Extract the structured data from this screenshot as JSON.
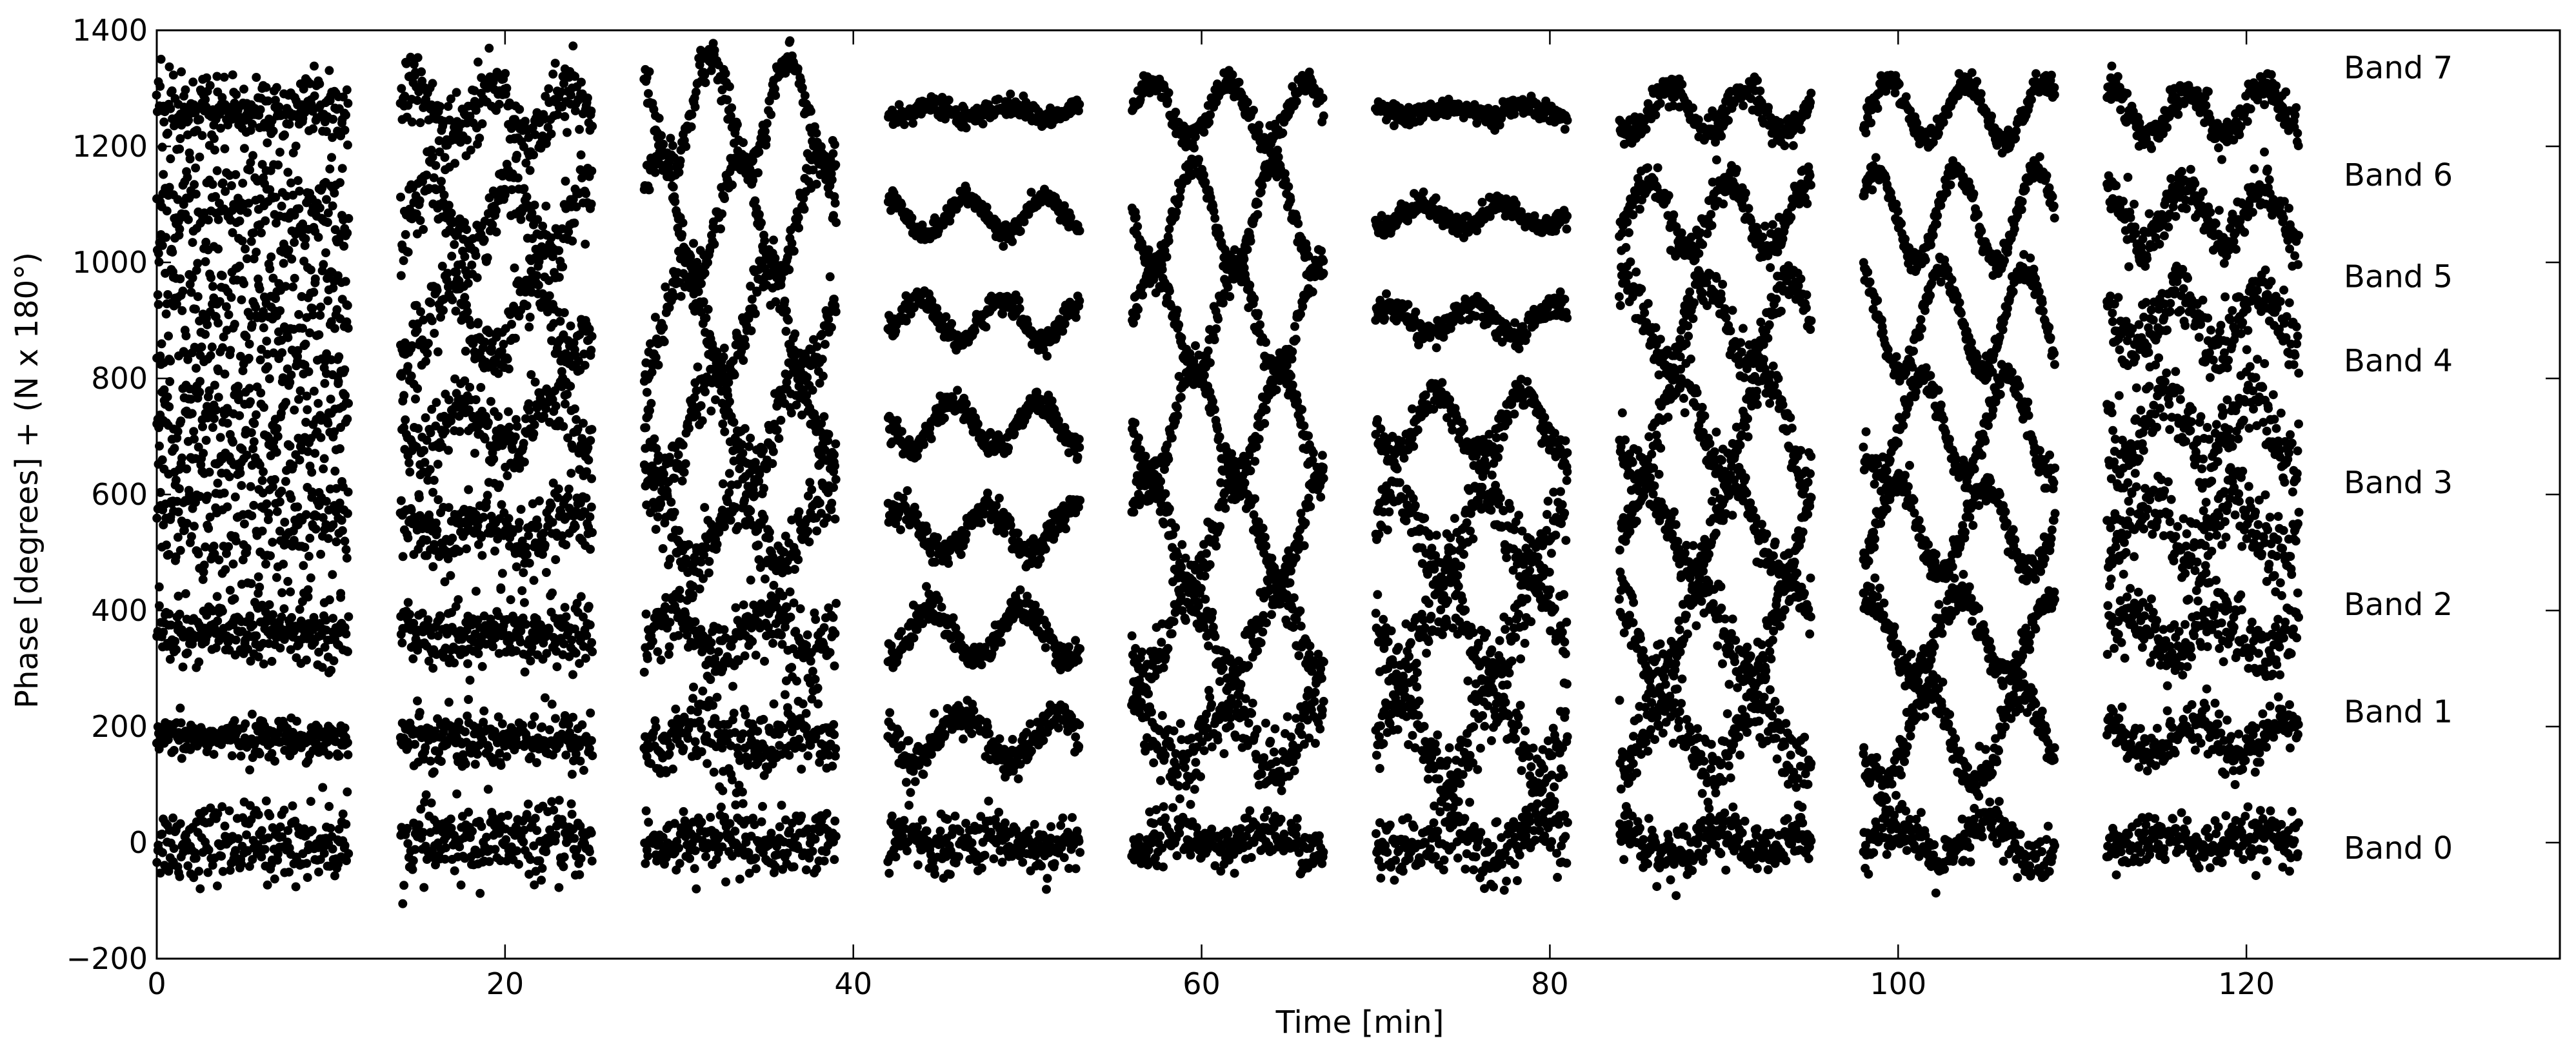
{
  "chart_data": {
    "type": "scatter",
    "xlabel": "Time [min]",
    "ylabel": "Phase [degrees] + (N x 180°)",
    "xlim": [
      0,
      138
    ],
    "ylim": [
      -200,
      1400
    ],
    "xticks": [
      0,
      20,
      40,
      60,
      80,
      100,
      120
    ],
    "yticks": [
      -200,
      0,
      200,
      400,
      600,
      800,
      1000,
      1200,
      1400
    ],
    "grid": false,
    "legend": "none",
    "marker_color": "#000000",
    "observation_segments": [
      [
        0,
        11
      ],
      [
        14,
        25
      ],
      [
        28,
        39
      ],
      [
        42,
        53
      ],
      [
        56,
        67
      ],
      [
        70,
        81
      ],
      [
        84,
        95
      ],
      [
        98,
        109
      ],
      [
        112,
        123
      ]
    ],
    "series": [
      {
        "name": "Band 0",
        "offset": 0,
        "label_y": -10,
        "scatter": [
          60,
          55,
          50,
          45,
          40,
          50,
          40,
          40,
          40
        ],
        "wave_amp": [
          0,
          0,
          5,
          10,
          20,
          25,
          20,
          35,
          10
        ]
      },
      {
        "name": "Band 1",
        "offset": 180,
        "label_y": 225,
        "scatter": [
          30,
          45,
          60,
          30,
          55,
          65,
          60,
          35,
          40
        ],
        "wave_amp": [
          0,
          5,
          20,
          40,
          50,
          70,
          60,
          80,
          30
        ]
      },
      {
        "name": "Band 2",
        "offset": 360,
        "label_y": 410,
        "scatter": [
          45,
          50,
          55,
          25,
          45,
          60,
          50,
          30,
          55
        ],
        "wave_amp": [
          0,
          5,
          30,
          45,
          70,
          70,
          75,
          65,
          40
        ]
      },
      {
        "name": "Band 3",
        "offset": 540,
        "label_y": 620,
        "scatter": [
          110,
          60,
          60,
          25,
          35,
          50,
          40,
          25,
          60
        ],
        "wave_amp": [
          0,
          20,
          60,
          40,
          85,
          70,
          80,
          75,
          50
        ]
      },
      {
        "name": "Band 4",
        "offset": 720,
        "label_y": 830,
        "scatter": [
          110,
          60,
          50,
          20,
          30,
          30,
          40,
          25,
          60
        ],
        "wave_amp": [
          0,
          40,
          80,
          40,
          95,
          50,
          85,
          85,
          60
        ]
      },
      {
        "name": "Band 5",
        "offset": 900,
        "label_y": 975,
        "scatter": [
          110,
          60,
          40,
          18,
          25,
          20,
          35,
          20,
          50
        ],
        "wave_amp": [
          0,
          60,
          90,
          35,
          90,
          25,
          70,
          90,
          50
        ]
      },
      {
        "name": "Band 6",
        "offset": 1080,
        "label_y": 1150,
        "scatter": [
          100,
          55,
          30,
          15,
          20,
          18,
          30,
          18,
          45
        ],
        "wave_amp": [
          0,
          60,
          100,
          30,
          90,
          20,
          60,
          80,
          50
        ]
      },
      {
        "name": "Band 7",
        "offset": 1260,
        "label_y": 1335,
        "scatter": [
          55,
          50,
          30,
          15,
          20,
          15,
          25,
          18,
          30
        ],
        "wave_amp": [
          0,
          40,
          90,
          10,
          50,
          10,
          40,
          50,
          40
        ]
      }
    ]
  }
}
